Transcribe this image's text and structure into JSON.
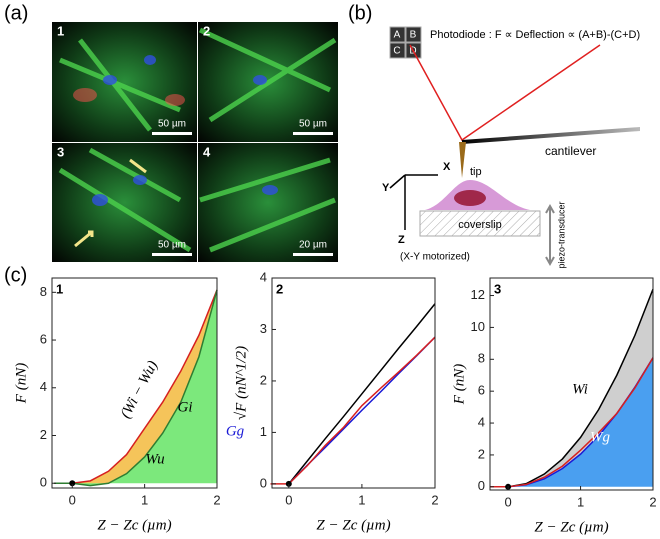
{
  "panel_labels": {
    "a": "(a)",
    "b": "(b)",
    "c": "(c)"
  },
  "microscopy": {
    "tiles": [
      {
        "number": "1",
        "scale_bar": "50 µm"
      },
      {
        "number": "2",
        "scale_bar": "50 µm"
      },
      {
        "number": "3",
        "scale_bar": "50 µm"
      },
      {
        "number": "4",
        "scale_bar": "20 µm"
      }
    ]
  },
  "schematic": {
    "quadrants": [
      "A",
      "B",
      "C",
      "D"
    ],
    "photodiode": "Photodiode : F ∝ Deflection ∝ (A+B)-(C+D)",
    "cantilever": "cantilever",
    "tip": "tip",
    "axes": [
      "X",
      "Y",
      "Z"
    ],
    "coverslip": "coverslip",
    "stage": "(X-Y motorized)",
    "piezo": "piezo-transducer"
  },
  "chart_data": [
    {
      "type": "line",
      "panel": "1",
      "xlabel": "Z − Zc (µm)",
      "ylabel": "F (nN)",
      "x": [
        -0.25,
        0,
        0.25,
        0.5,
        0.75,
        1,
        1.25,
        1.5,
        1.75,
        2
      ],
      "series": [
        {
          "color": "#d62020",
          "fill": "#f5c45a",
          "values": [
            0,
            0,
            0.1,
            0.5,
            1.2,
            2.3,
            3.4,
            4.7,
            6.2,
            8.1
          ]
        },
        {
          "color": "#2e7d32",
          "fill": "#7ce87c",
          "values": [
            0,
            0,
            -0.1,
            0,
            0.4,
            1.1,
            2.1,
            3.4,
            5.3,
            8.1
          ]
        }
      ],
      "annotations": [
        "(Wi − Wu)",
        "Wu"
      ],
      "xlim": [
        -0.28,
        2
      ],
      "ylim": [
        -0.2,
        8.6
      ],
      "xticks": [
        0,
        1,
        2
      ],
      "yticks": [
        0,
        2,
        4,
        6,
        8
      ]
    },
    {
      "type": "line",
      "panel": "2",
      "xlabel": "Z − Zc (µm)",
      "ylabel": "√F (nN^1/2)",
      "x": [
        -0.25,
        0,
        0.25,
        0.5,
        0.75,
        1,
        1.25,
        1.5,
        1.75,
        2
      ],
      "series": [
        {
          "color": "#000000",
          "values": [
            null,
            0,
            0.44,
            0.88,
            1.31,
            1.75,
            2.19,
            2.63,
            3.06,
            3.5
          ]
        },
        {
          "color": "#1a1ad6",
          "values": [
            null,
            0,
            0.36,
            0.71,
            1.07,
            1.43,
            1.78,
            2.14,
            2.49,
            2.85
          ]
        },
        {
          "color": "#d62020",
          "values": [
            0,
            0,
            0.35,
            0.75,
            1.1,
            1.52,
            1.85,
            2.17,
            2.5,
            2.85
          ]
        }
      ],
      "annotations": [
        "Gi",
        "Gg"
      ],
      "xlim": [
        -0.23,
        2
      ],
      "ylim": [
        -0.08,
        4
      ],
      "xticks": [
        0,
        1,
        2
      ],
      "yticks": [
        0,
        1,
        2,
        3,
        4
      ]
    },
    {
      "type": "line",
      "panel": "3",
      "xlabel": "Z − Zc (µm)",
      "ylabel": "F (nN)",
      "x": [
        -0.25,
        0,
        0.25,
        0.5,
        0.75,
        1,
        1.25,
        1.5,
        1.75,
        2
      ],
      "series": [
        {
          "color": "#000000",
          "fill": "#cfcfcf",
          "values": [
            0,
            0,
            0.2,
            0.8,
            1.75,
            3.1,
            4.85,
            7,
            9.5,
            12.4
          ]
        },
        {
          "color": "#1a1ad6",
          "fill": "#4a9ff0",
          "values": [
            0,
            0,
            0.13,
            0.5,
            1.15,
            2.05,
            3.2,
            4.6,
            6.25,
            8.1
          ]
        },
        {
          "color": "#d62020",
          "values": [
            0,
            0,
            0.15,
            0.6,
            1.3,
            2.3,
            3.4,
            4.6,
            6.2,
            8.1
          ]
        }
      ],
      "annotations": [
        "Wi",
        "Wg"
      ],
      "xlim": [
        -0.25,
        2
      ],
      "ylim": [
        -0.2,
        13.1
      ],
      "xticks": [
        0,
        1,
        2
      ],
      "yticks": [
        0,
        2,
        4,
        6,
        8,
        10,
        12
      ]
    }
  ]
}
